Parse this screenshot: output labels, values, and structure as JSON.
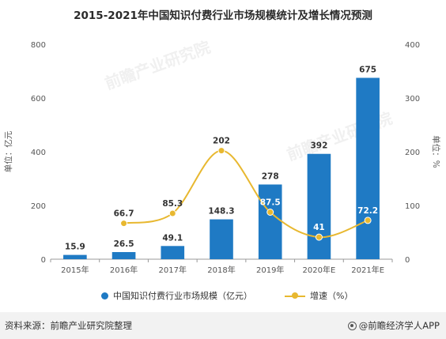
{
  "title": "2015-2021年中国知识付费行业市场规模统计及增长情况预测",
  "colors": {
    "bar": "#1f7ac4",
    "line": "#e8b830",
    "axis": "#999999"
  },
  "chart_data": {
    "type": "bar",
    "title": "2015-2021年中国知识付费行业市场规模统计及增长情况预测",
    "categories": [
      "2015年",
      "2016年",
      "2017年",
      "2018年",
      "2019年",
      "2020年E",
      "2021年E"
    ],
    "series": [
      {
        "name": "中国知识付费行业市场规模（亿元）",
        "type": "bar",
        "axis": "left",
        "values": [
          15.9,
          26.5,
          49.1,
          148.3,
          278,
          392,
          675
        ]
      },
      {
        "name": "增速（%）",
        "type": "line",
        "axis": "right",
        "values": [
          null,
          66.7,
          85.3,
          202,
          87.5,
          41,
          72.2
        ]
      }
    ],
    "ylabel": "单位：亿元",
    "y2label": "单位：%",
    "ylim": [
      0,
      800
    ],
    "y2lim": [
      0,
      400
    ],
    "yticks": [
      0,
      200,
      400,
      600,
      800
    ],
    "y2ticks": [
      0,
      100,
      200,
      300,
      400
    ],
    "grid": false,
    "legend_position": "bottom"
  },
  "legend": {
    "bar": "中国知识付费行业市场规模（亿元）",
    "line": "增速（%）"
  },
  "watermark": {
    "brand": "前瞻产业研究院"
  },
  "footer": {
    "source": "资料来源：前瞻产业研究院整理",
    "brand": "@前瞻经济学人APP"
  }
}
